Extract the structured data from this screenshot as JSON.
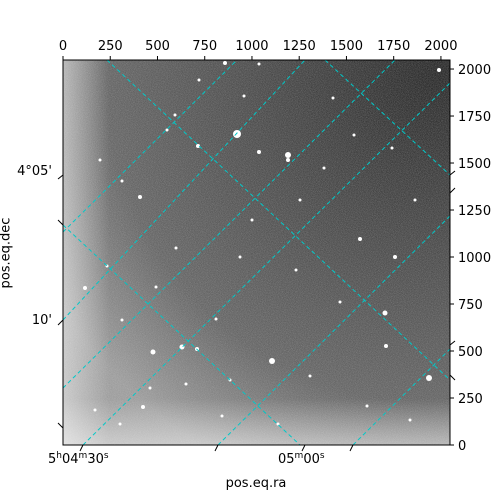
{
  "chart_data": {
    "type": "heatmap",
    "title": "",
    "xlabel": "pos.eq.ra",
    "ylabel": "pos.eq.dec",
    "pixel_axis": {
      "x_range": [
        0,
        2048
      ],
      "y_range": [
        0,
        2048
      ],
      "x_ticks": [
        0,
        250,
        500,
        750,
        1000,
        1250,
        1500,
        1750,
        2000
      ],
      "y_ticks": [
        0,
        250,
        500,
        750,
        1000,
        1250,
        1500,
        1750,
        2000
      ]
    },
    "world_axis": {
      "ra_ticks": [
        {
          "label_h": "5",
          "label_m": "04",
          "label_s": "30"
        },
        {
          "label_h": "",
          "label_m": "05",
          "label_s": "00"
        }
      ],
      "dec_ticks": [
        "4°05'",
        "10'"
      ]
    },
    "image": {
      "colormap": "gray",
      "background": "mid-gray noise, darker toward upper-right, brighter toward left and bottom-left edges",
      "sources": "scattered point-like stars"
    },
    "grid": {
      "on": true,
      "color": "#00c8c8",
      "style": "dashed"
    }
  }
}
